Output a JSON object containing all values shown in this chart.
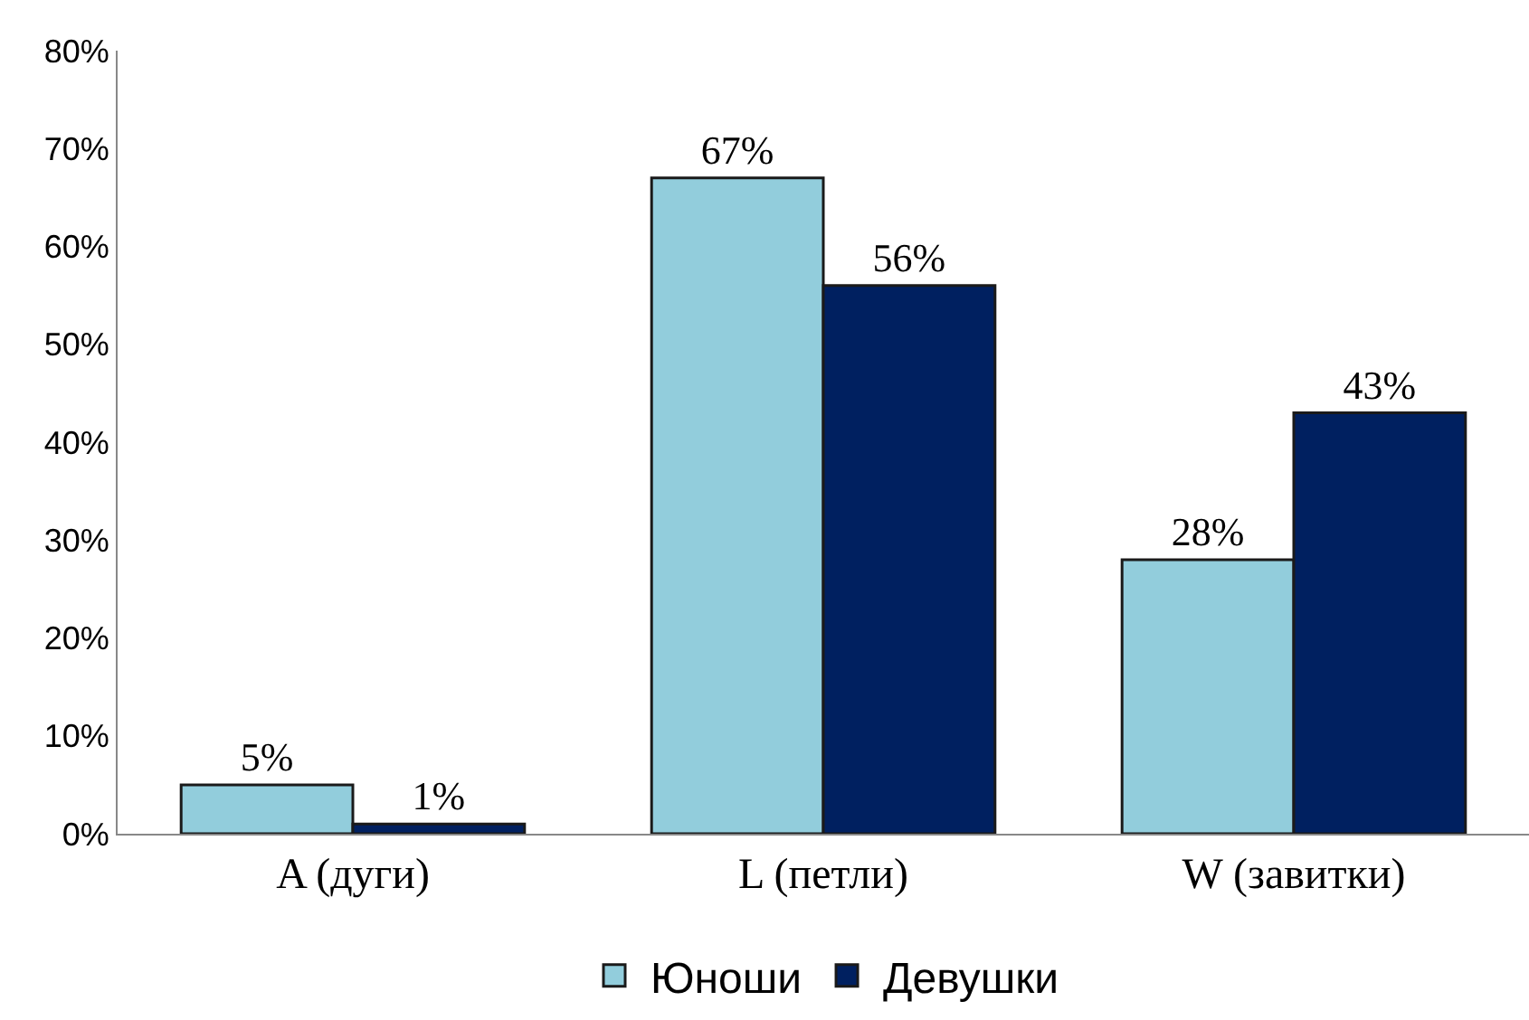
{
  "chart_data": {
    "type": "bar",
    "categories": [
      "A (дуги)",
      "L (петли)",
      "W (завитки)"
    ],
    "series": [
      {
        "name": "Юноши",
        "color": "#92cddc",
        "values": [
          5,
          67,
          28
        ],
        "value_labels": [
          "5%",
          "67%",
          "28%"
        ]
      },
      {
        "name": "Девушки",
        "color": "#002060",
        "values": [
          1,
          56,
          43
        ],
        "value_labels": [
          "1%",
          "56%",
          "43%"
        ]
      }
    ],
    "ylim": [
      0,
      80
    ],
    "yticks": [
      {
        "value": 0,
        "label": "0%"
      },
      {
        "value": 10,
        "label": "10%"
      },
      {
        "value": 20,
        "label": "20%"
      },
      {
        "value": 30,
        "label": "30%"
      },
      {
        "value": 40,
        "label": "40%"
      },
      {
        "value": 50,
        "label": "50%"
      },
      {
        "value": 60,
        "label": "60%"
      },
      {
        "value": 70,
        "label": "70%"
      },
      {
        "value": 80,
        "label": "80%"
      }
    ],
    "grid": false,
    "legend": "bottom"
  }
}
